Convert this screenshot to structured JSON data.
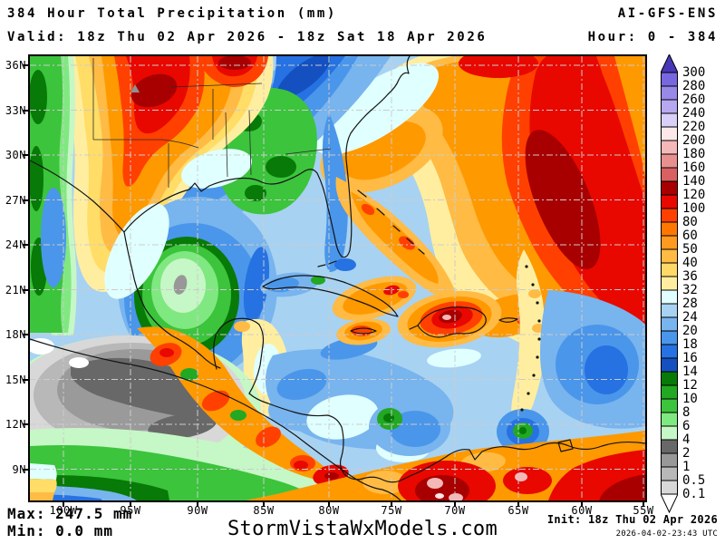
{
  "header": {
    "title": "384 Hour Total Precipitation (mm)",
    "model": "AI-GFS-ENS",
    "valid": "Valid: 18z Thu 02 Apr 2026 - 18z Sat 18 Apr 2026",
    "hour": "Hour: 0 - 384"
  },
  "map": {
    "lat_labels": [
      "36N",
      "33N",
      "30N",
      "27N",
      "24N",
      "21N",
      "18N",
      "15N",
      "12N",
      "9N"
    ],
    "lon_labels": [
      "100W",
      "95W",
      "90W",
      "85W",
      "80W",
      "75W",
      "70W",
      "65W",
      "60W",
      "55W"
    ]
  },
  "colorbar": {
    "labels": [
      "300",
      "280",
      "260",
      "240",
      "220",
      "200",
      "180",
      "160",
      "140",
      "120",
      "100",
      "80",
      "60",
      "50",
      "40",
      "36",
      "32",
      "28",
      "24",
      "20",
      "18",
      "16",
      "14",
      "12",
      "10",
      "8",
      "6",
      "4",
      "2",
      "1",
      "0.5",
      "0.1"
    ],
    "cell_colors": [
      "#7868e0",
      "#9888e8",
      "#b8a8f0",
      "#d8d0f8",
      "#fce8e8",
      "#f5b8b8",
      "#e89090",
      "#d86060",
      "#a80000",
      "#e80800",
      "#ff4000",
      "#ff7700",
      "#ff9920",
      "#ffbb44",
      "#ffd966",
      "#ffeea0",
      "#e0ffff",
      "#a8d2f2",
      "#78b4ee",
      "#4a96ea",
      "#2672e2",
      "#1550c0",
      "#077a07",
      "#22a822",
      "#3cc43c",
      "#80e880",
      "#c6f7c6",
      "#686868",
      "#989898",
      "#b8b8b8",
      "#d8d8d8"
    ],
    "arrow_top_color": "#4838b8",
    "arrow_bottom_color": "#ffffff"
  },
  "footer": {
    "max": "Max: 247.5 mm",
    "min": "Min: 0.0 mm",
    "site": "StormVistaWxModels.com",
    "init": "Init: 18z Thu 02 Apr 2026",
    "generated": "2026-04-02-23:43 UTC"
  }
}
